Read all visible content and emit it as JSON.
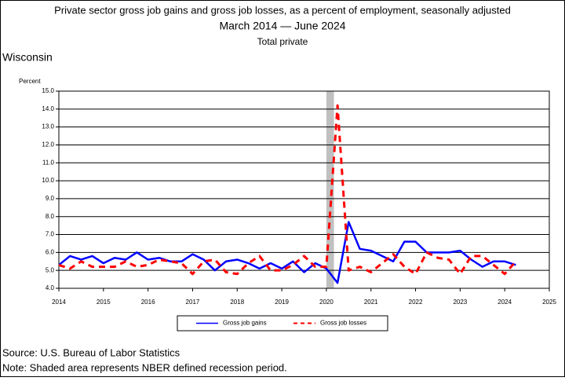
{
  "chart_data": {
    "type": "line",
    "title": "Private sector gross job gains and gross job losses, as a percent of employment, seasonally adjusted",
    "subtitle": "March 2014 — June 2024",
    "subtitle2": "Total private",
    "region": "Wisconsin",
    "ylabel": "Percent",
    "source": "Source: U.S. Bureau of Labor Statistics",
    "note": "Note: Shaded area represents NBER defined recession period.",
    "x": [
      2014,
      2014.25,
      2014.5,
      2014.75,
      2015,
      2015.25,
      2015.5,
      2015.75,
      2016,
      2016.25,
      2016.5,
      2016.75,
      2017,
      2017.25,
      2017.5,
      2017.75,
      2018,
      2018.25,
      2018.5,
      2018.75,
      2019,
      2019.25,
      2019.5,
      2019.75,
      2020,
      2020.25,
      2020.5,
      2020.75,
      2021,
      2021.25,
      2021.5,
      2021.75,
      2022,
      2022.25,
      2022.5,
      2022.75,
      2023,
      2023.25,
      2023.5,
      2023.75,
      2024,
      2024.25
    ],
    "series": [
      {
        "name": "Gross job gains",
        "color": "#0000ff",
        "dash": "solid",
        "values": [
          5.3,
          5.8,
          5.6,
          5.8,
          5.4,
          5.7,
          5.6,
          6.0,
          5.6,
          5.7,
          5.5,
          5.5,
          5.9,
          5.6,
          5.0,
          5.5,
          5.6,
          5.4,
          5.1,
          5.4,
          5.1,
          5.5,
          4.9,
          5.4,
          5.1,
          4.3,
          7.7,
          6.2,
          6.1,
          5.8,
          5.5,
          6.6,
          6.6,
          6.0,
          6.0,
          6.0,
          6.1,
          5.6,
          5.2,
          5.5,
          5.5,
          5.3
        ]
      },
      {
        "name": "Gross job losses",
        "color": "#ff0000",
        "dash": "dashed",
        "values": [
          5.3,
          5.1,
          5.5,
          5.2,
          5.2,
          5.2,
          5.5,
          5.2,
          5.3,
          5.6,
          5.5,
          5.4,
          4.8,
          5.5,
          5.6,
          4.9,
          4.8,
          5.4,
          5.8,
          5.0,
          5.0,
          5.3,
          5.8,
          5.2,
          5.2,
          14.2,
          5.0,
          5.2,
          4.9,
          5.4,
          5.9,
          5.2,
          4.8,
          6.0,
          5.7,
          5.6,
          4.8,
          5.8,
          5.8,
          5.3,
          4.8,
          5.5
        ]
      }
    ],
    "shaded_region": {
      "xlim": [
        2020,
        2020.17
      ],
      "color": "#c0c0c0"
    },
    "xlim": [
      2014,
      2025
    ],
    "xticks": [
      2014,
      2015,
      2016,
      2017,
      2018,
      2019,
      2020,
      2021,
      2022,
      2023,
      2024,
      2025
    ],
    "ylim": [
      4,
      15
    ],
    "yticks": [
      {
        "value": 4,
        "label": "4.0"
      },
      {
        "value": 5,
        "label": "5.0"
      },
      {
        "value": 6,
        "label": "6.0"
      },
      {
        "value": 7,
        "label": "7.0"
      },
      {
        "value": 8,
        "label": "8.0"
      },
      {
        "value": 9,
        "label": "9.0"
      },
      {
        "value": 10,
        "label": "10.0"
      },
      {
        "value": 11,
        "label": "11.0"
      },
      {
        "value": 12,
        "label": "12.0"
      },
      {
        "value": 13,
        "label": "13.0"
      },
      {
        "value": 14,
        "label": "14.0"
      },
      {
        "value": 15,
        "label": "15.0"
      }
    ],
    "grid": true,
    "legend": "bottom"
  }
}
